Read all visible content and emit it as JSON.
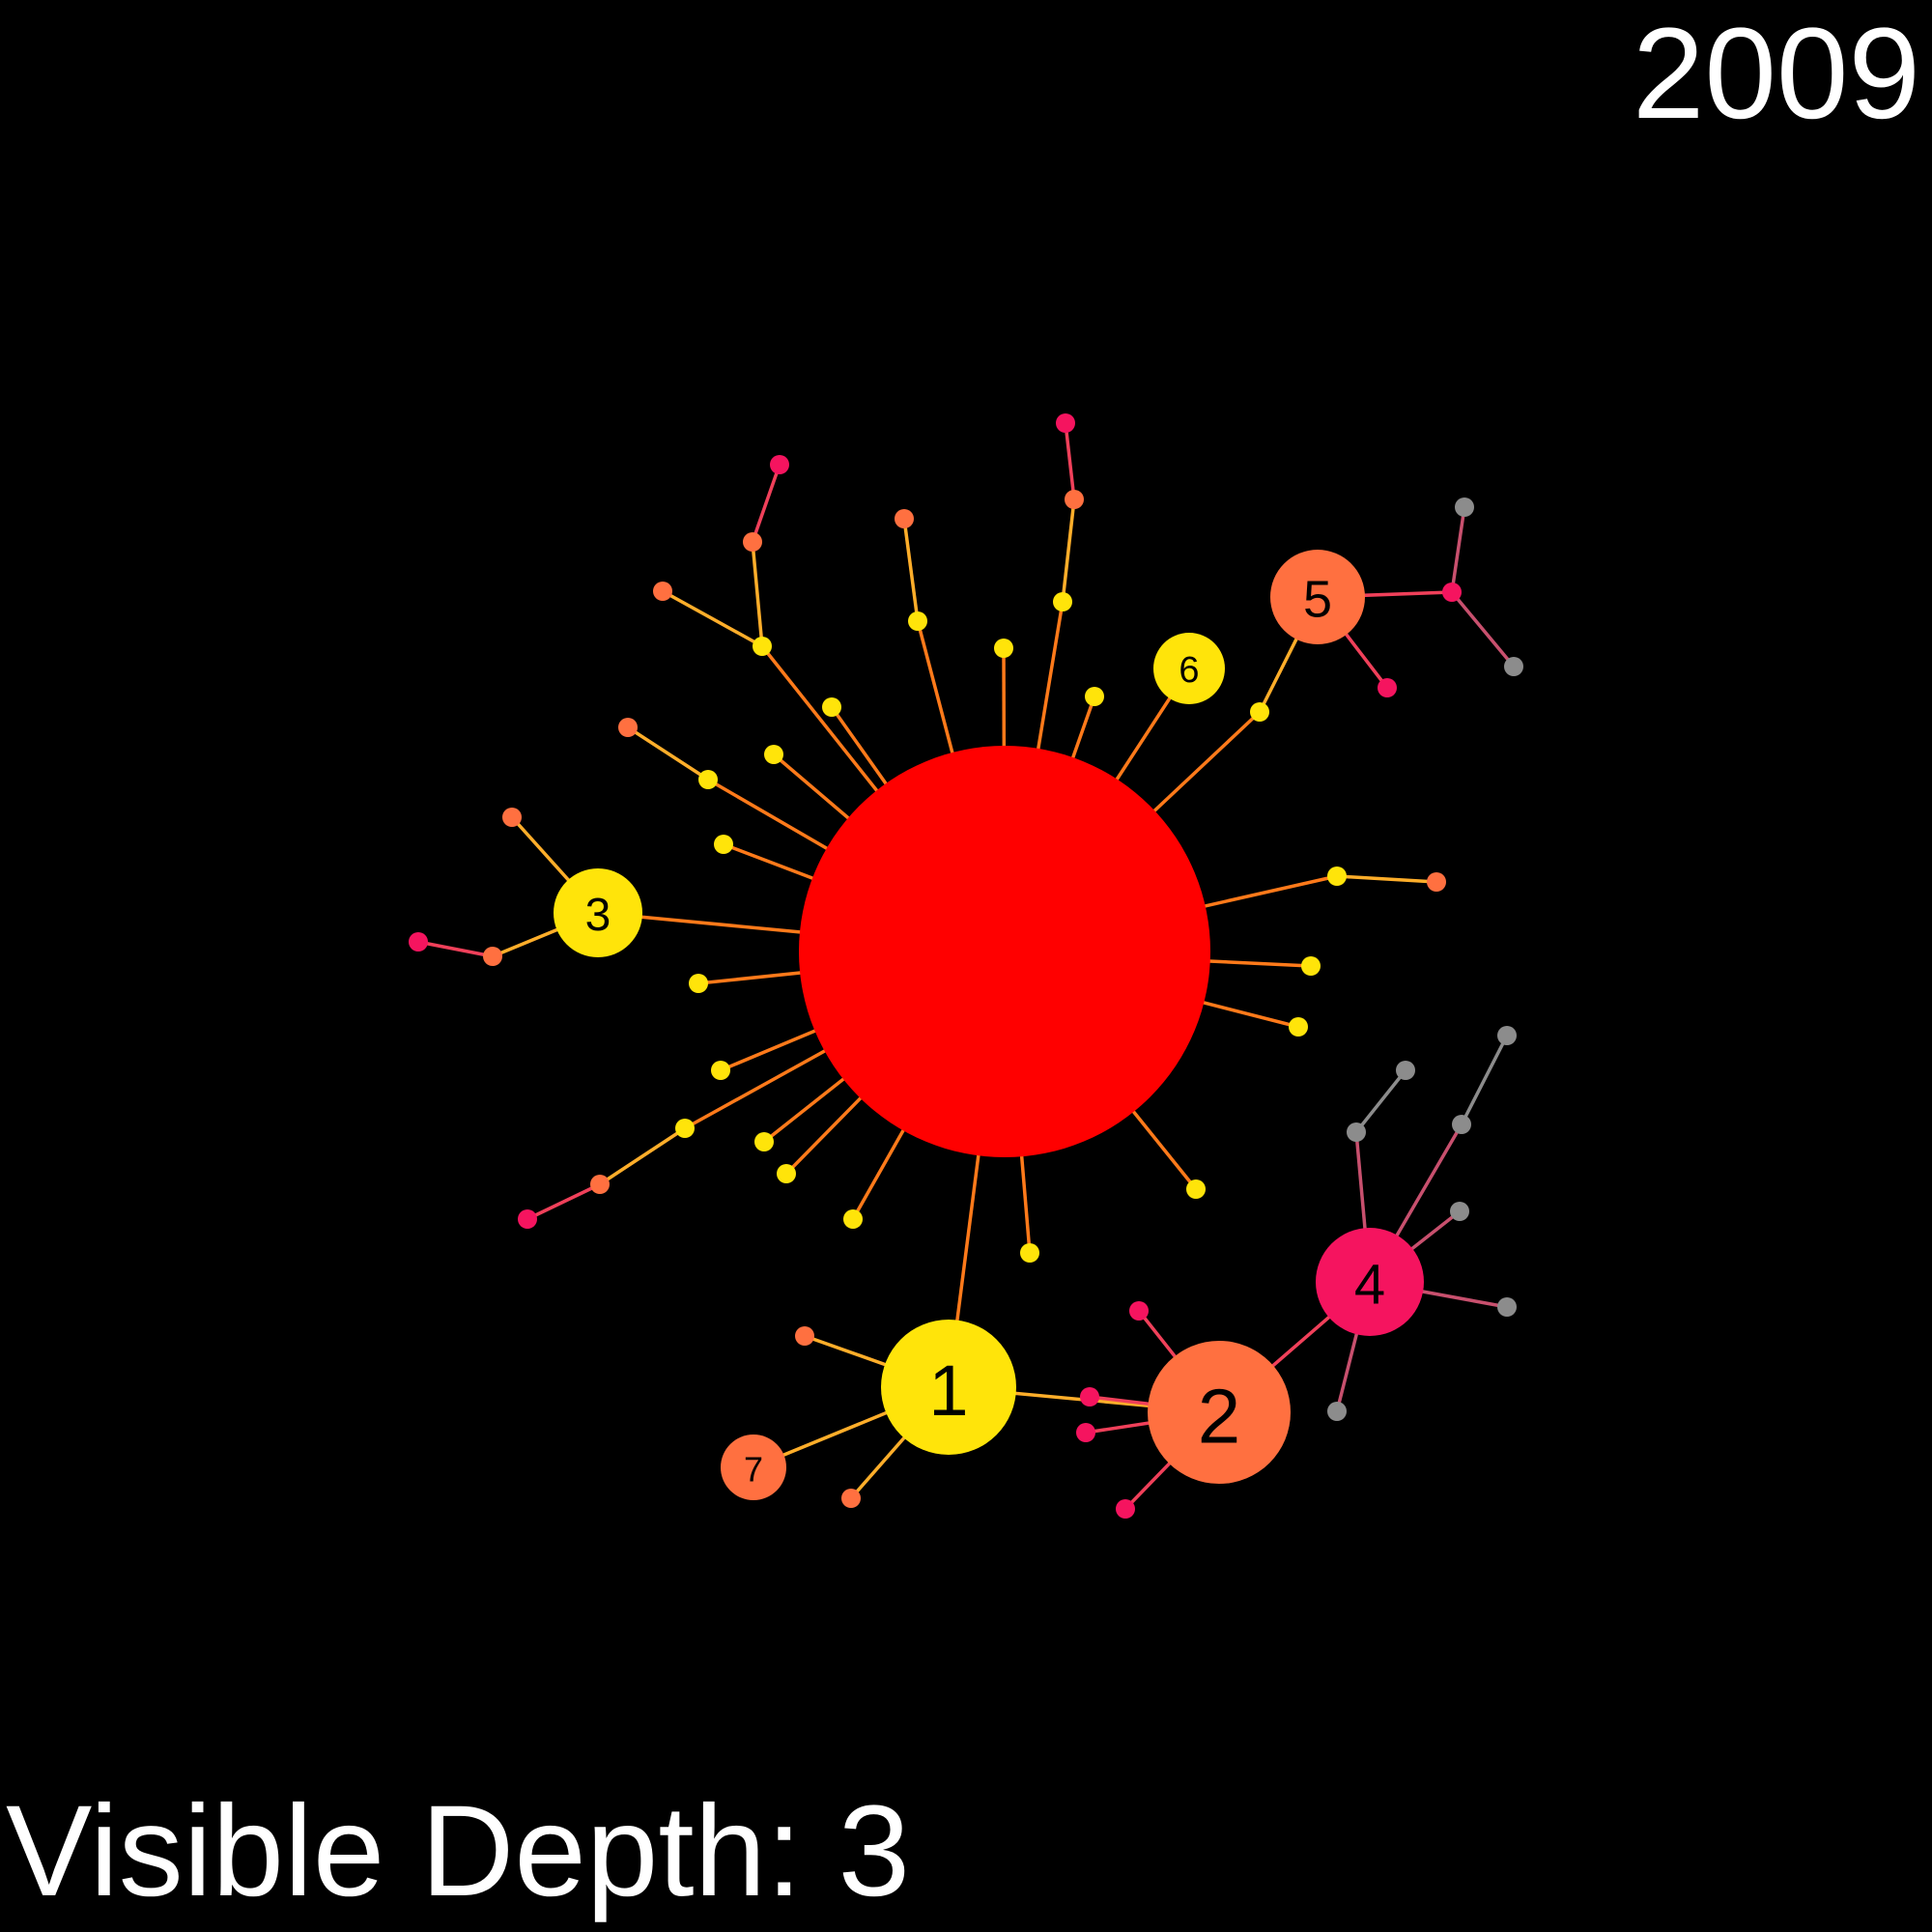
{
  "year": "2009",
  "depth_label": "Visible Depth: 3",
  "colors": {
    "background": "#000000",
    "root": "#ff0000",
    "yellow": "#ffe40a",
    "orange": "#ff7040",
    "pink": "#f5145f",
    "gray": "#8c8c8c",
    "edge_orange": "#ff7a1a",
    "edge_light": "#ffae2a",
    "edge_pink": "#f0405a",
    "edge_mauve": "#c8506e"
  },
  "labels": {
    "n1": "1",
    "n2": "2",
    "n3": "3",
    "n4": "4",
    "n5": "5",
    "n6": "6",
    "n7": "7"
  }
}
